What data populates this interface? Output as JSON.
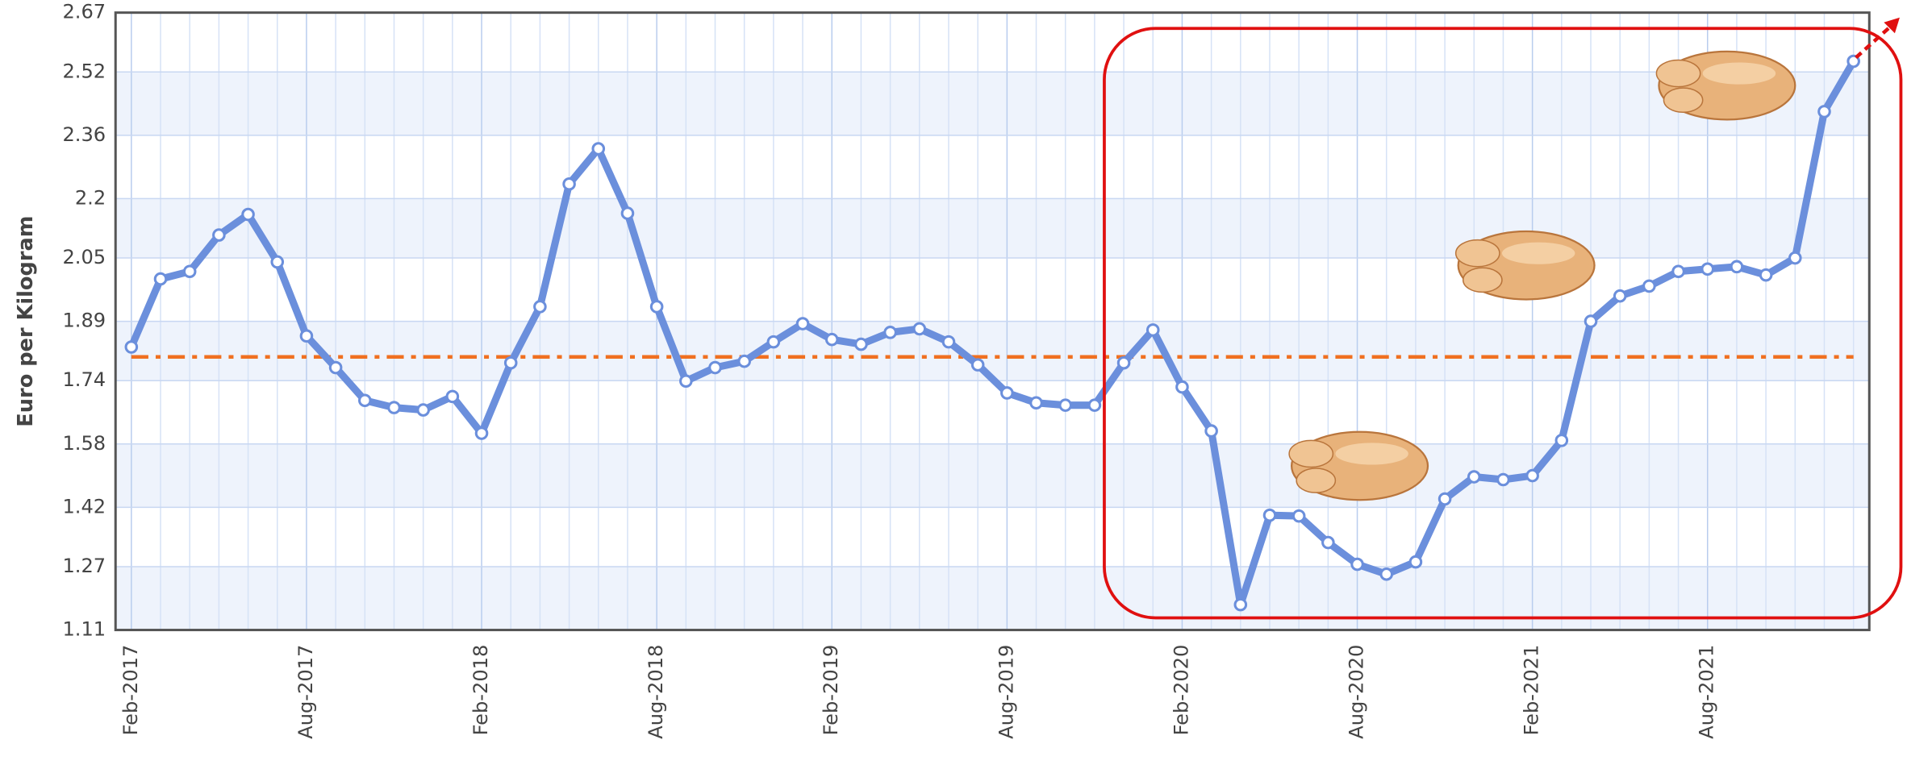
{
  "chart_data": {
    "type": "line",
    "y_label": "Euro per Kilogram",
    "categories": [
      "Feb-2017",
      null,
      null,
      null,
      null,
      null,
      "Aug-2017",
      null,
      null,
      null,
      null,
      null,
      "Feb-2018",
      null,
      null,
      null,
      null,
      null,
      "Aug-2018",
      null,
      null,
      null,
      null,
      null,
      "Feb-2019",
      null,
      null,
      null,
      null,
      null,
      "Aug-2019",
      null,
      null,
      null,
      null,
      null,
      "Feb-2020",
      null,
      null,
      null,
      null,
      null,
      "Aug-2020",
      null,
      null,
      null,
      null,
      null,
      "Feb-2021",
      null,
      null,
      null,
      null,
      null,
      "Aug-2021",
      null,
      null,
      null,
      null,
      null
    ],
    "series": [
      {
        "color": "#6b8fdc",
        "values": [
          1.825,
          1.997,
          2.016,
          2.108,
          2.16,
          2.04,
          1.853,
          1.773,
          1.69,
          1.672,
          1.666,
          1.7,
          1.607,
          1.785,
          1.927,
          2.237,
          2.326,
          2.163,
          1.927,
          1.739,
          1.773,
          1.789,
          1.838,
          1.884,
          1.844,
          1.832,
          1.862,
          1.871,
          1.838,
          1.78,
          1.709,
          1.684,
          1.678,
          1.678,
          1.785,
          1.868,
          1.724,
          1.613,
          1.174,
          1.4,
          1.398,
          1.331,
          1.276,
          1.251,
          1.282,
          1.441,
          1.497,
          1.49,
          1.5,
          1.589,
          1.89,
          1.954,
          1.979,
          2.016,
          2.022,
          2.028,
          2.007,
          2.05,
          2.42,
          2.547
        ]
      }
    ],
    "reference_line": {
      "value": 1.8,
      "color": "#f07020"
    },
    "ylim": [
      1.11,
      2.67
    ],
    "yticks": [
      1.11,
      1.27,
      1.42,
      1.58,
      1.74,
      1.89,
      2.05,
      2.2,
      2.36,
      2.52,
      2.67
    ],
    "grid": true
  }
}
